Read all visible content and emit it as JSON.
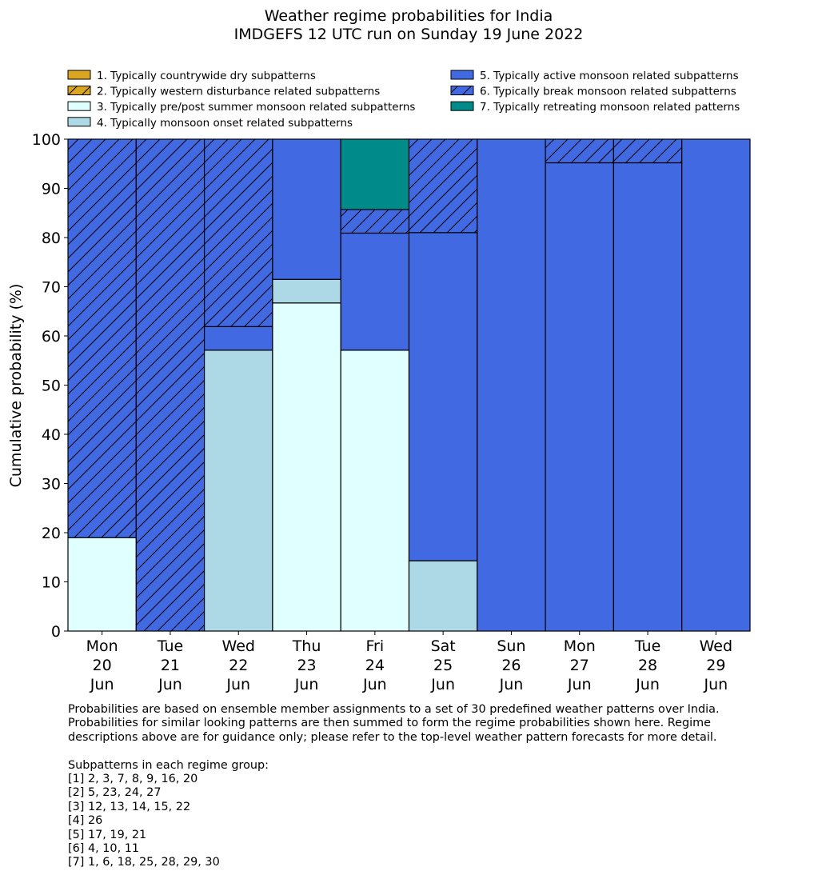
{
  "chart_data": {
    "type": "bar",
    "stacked": true,
    "title": "Weather regime probabilities for India",
    "subtitle": "IMDGEFS 12 UTC run on Sunday 19 June 2022",
    "ylabel": "Cumulative probability (%)",
    "xlabel": "",
    "ylim": [
      0,
      100
    ],
    "yticks": [
      "0",
      "10",
      "20",
      "30",
      "40",
      "50",
      "60",
      "70",
      "80",
      "90",
      "100"
    ],
    "categories": [
      [
        "Mon",
        "20",
        "Jun"
      ],
      [
        "Tue",
        "21",
        "Jun"
      ],
      [
        "Wed",
        "22",
        "Jun"
      ],
      [
        "Thu",
        "23",
        "Jun"
      ],
      [
        "Fri",
        "24",
        "Jun"
      ],
      [
        "Sat",
        "25",
        "Jun"
      ],
      [
        "Sun",
        "26",
        "Jun"
      ],
      [
        "Mon",
        "27",
        "Jun"
      ],
      [
        "Tue",
        "28",
        "Jun"
      ],
      [
        "Wed",
        "29",
        "Jun"
      ]
    ],
    "legend_position": "top",
    "series": [
      {
        "name": "1. Typically countrywide dry subpatterns",
        "color": "#DAA520",
        "hatch": false,
        "values": [
          0,
          0,
          0,
          0,
          0,
          0,
          0,
          0,
          0,
          0
        ]
      },
      {
        "name": "2. Typically western disturbance related subpatterns",
        "color": "#DAA520",
        "hatch": true,
        "values": [
          0,
          0,
          0,
          0,
          0,
          0,
          0,
          0,
          0,
          0
        ]
      },
      {
        "name": "3. Typically pre/post summer monsoon related subpatterns",
        "color": "#E0FFFF",
        "hatch": false,
        "values": [
          19.0,
          0,
          0,
          66.7,
          57.1,
          0,
          0,
          0,
          0,
          0
        ]
      },
      {
        "name": "4. Typically monsoon onset related subpatterns",
        "color": "#ADD8E6",
        "hatch": false,
        "values": [
          0,
          0,
          57.1,
          4.8,
          0,
          14.3,
          0,
          0,
          0,
          0
        ]
      },
      {
        "name": "5. Typically active monsoon related subpatterns",
        "color": "#4169E1",
        "hatch": false,
        "values": [
          0,
          0,
          4.8,
          28.5,
          23.8,
          66.7,
          100,
          95.2,
          95.2,
          100
        ]
      },
      {
        "name": "6. Typically break monsoon related subpatterns",
        "color": "#4169E1",
        "hatch": true,
        "values": [
          81.0,
          100,
          38.1,
          0,
          4.8,
          19.0,
          0,
          4.8,
          4.8,
          0
        ]
      },
      {
        "name": "7. Typically retreating monsoon related patterns",
        "color": "#008B8B",
        "hatch": false,
        "values": [
          0,
          0,
          0,
          0,
          14.3,
          0,
          0,
          0,
          0,
          0
        ]
      }
    ]
  },
  "notes": {
    "line1": "Probabilities are based on ensemble member assignments to a set of 30 predefined weather patterns over India.",
    "line2": "Probabilities for similar looking patterns are then summed to form the regime probabilities shown here. Regime",
    "line3": "descriptions above are for guidance only; please refer to the top-level weather pattern forecasts for more detail.",
    "groups_heading": "Subpatterns in each regime group:",
    "groups": [
      "[1] 2, 3, 7, 8, 9, 16, 20",
      "[2] 5, 23, 24, 27",
      "[3] 12, 13, 14, 15, 22",
      "[4] 26",
      "[5] 17, 19, 21",
      "[6] 4, 10, 11",
      "[7] 1, 6, 18, 25, 28, 29, 30"
    ]
  }
}
